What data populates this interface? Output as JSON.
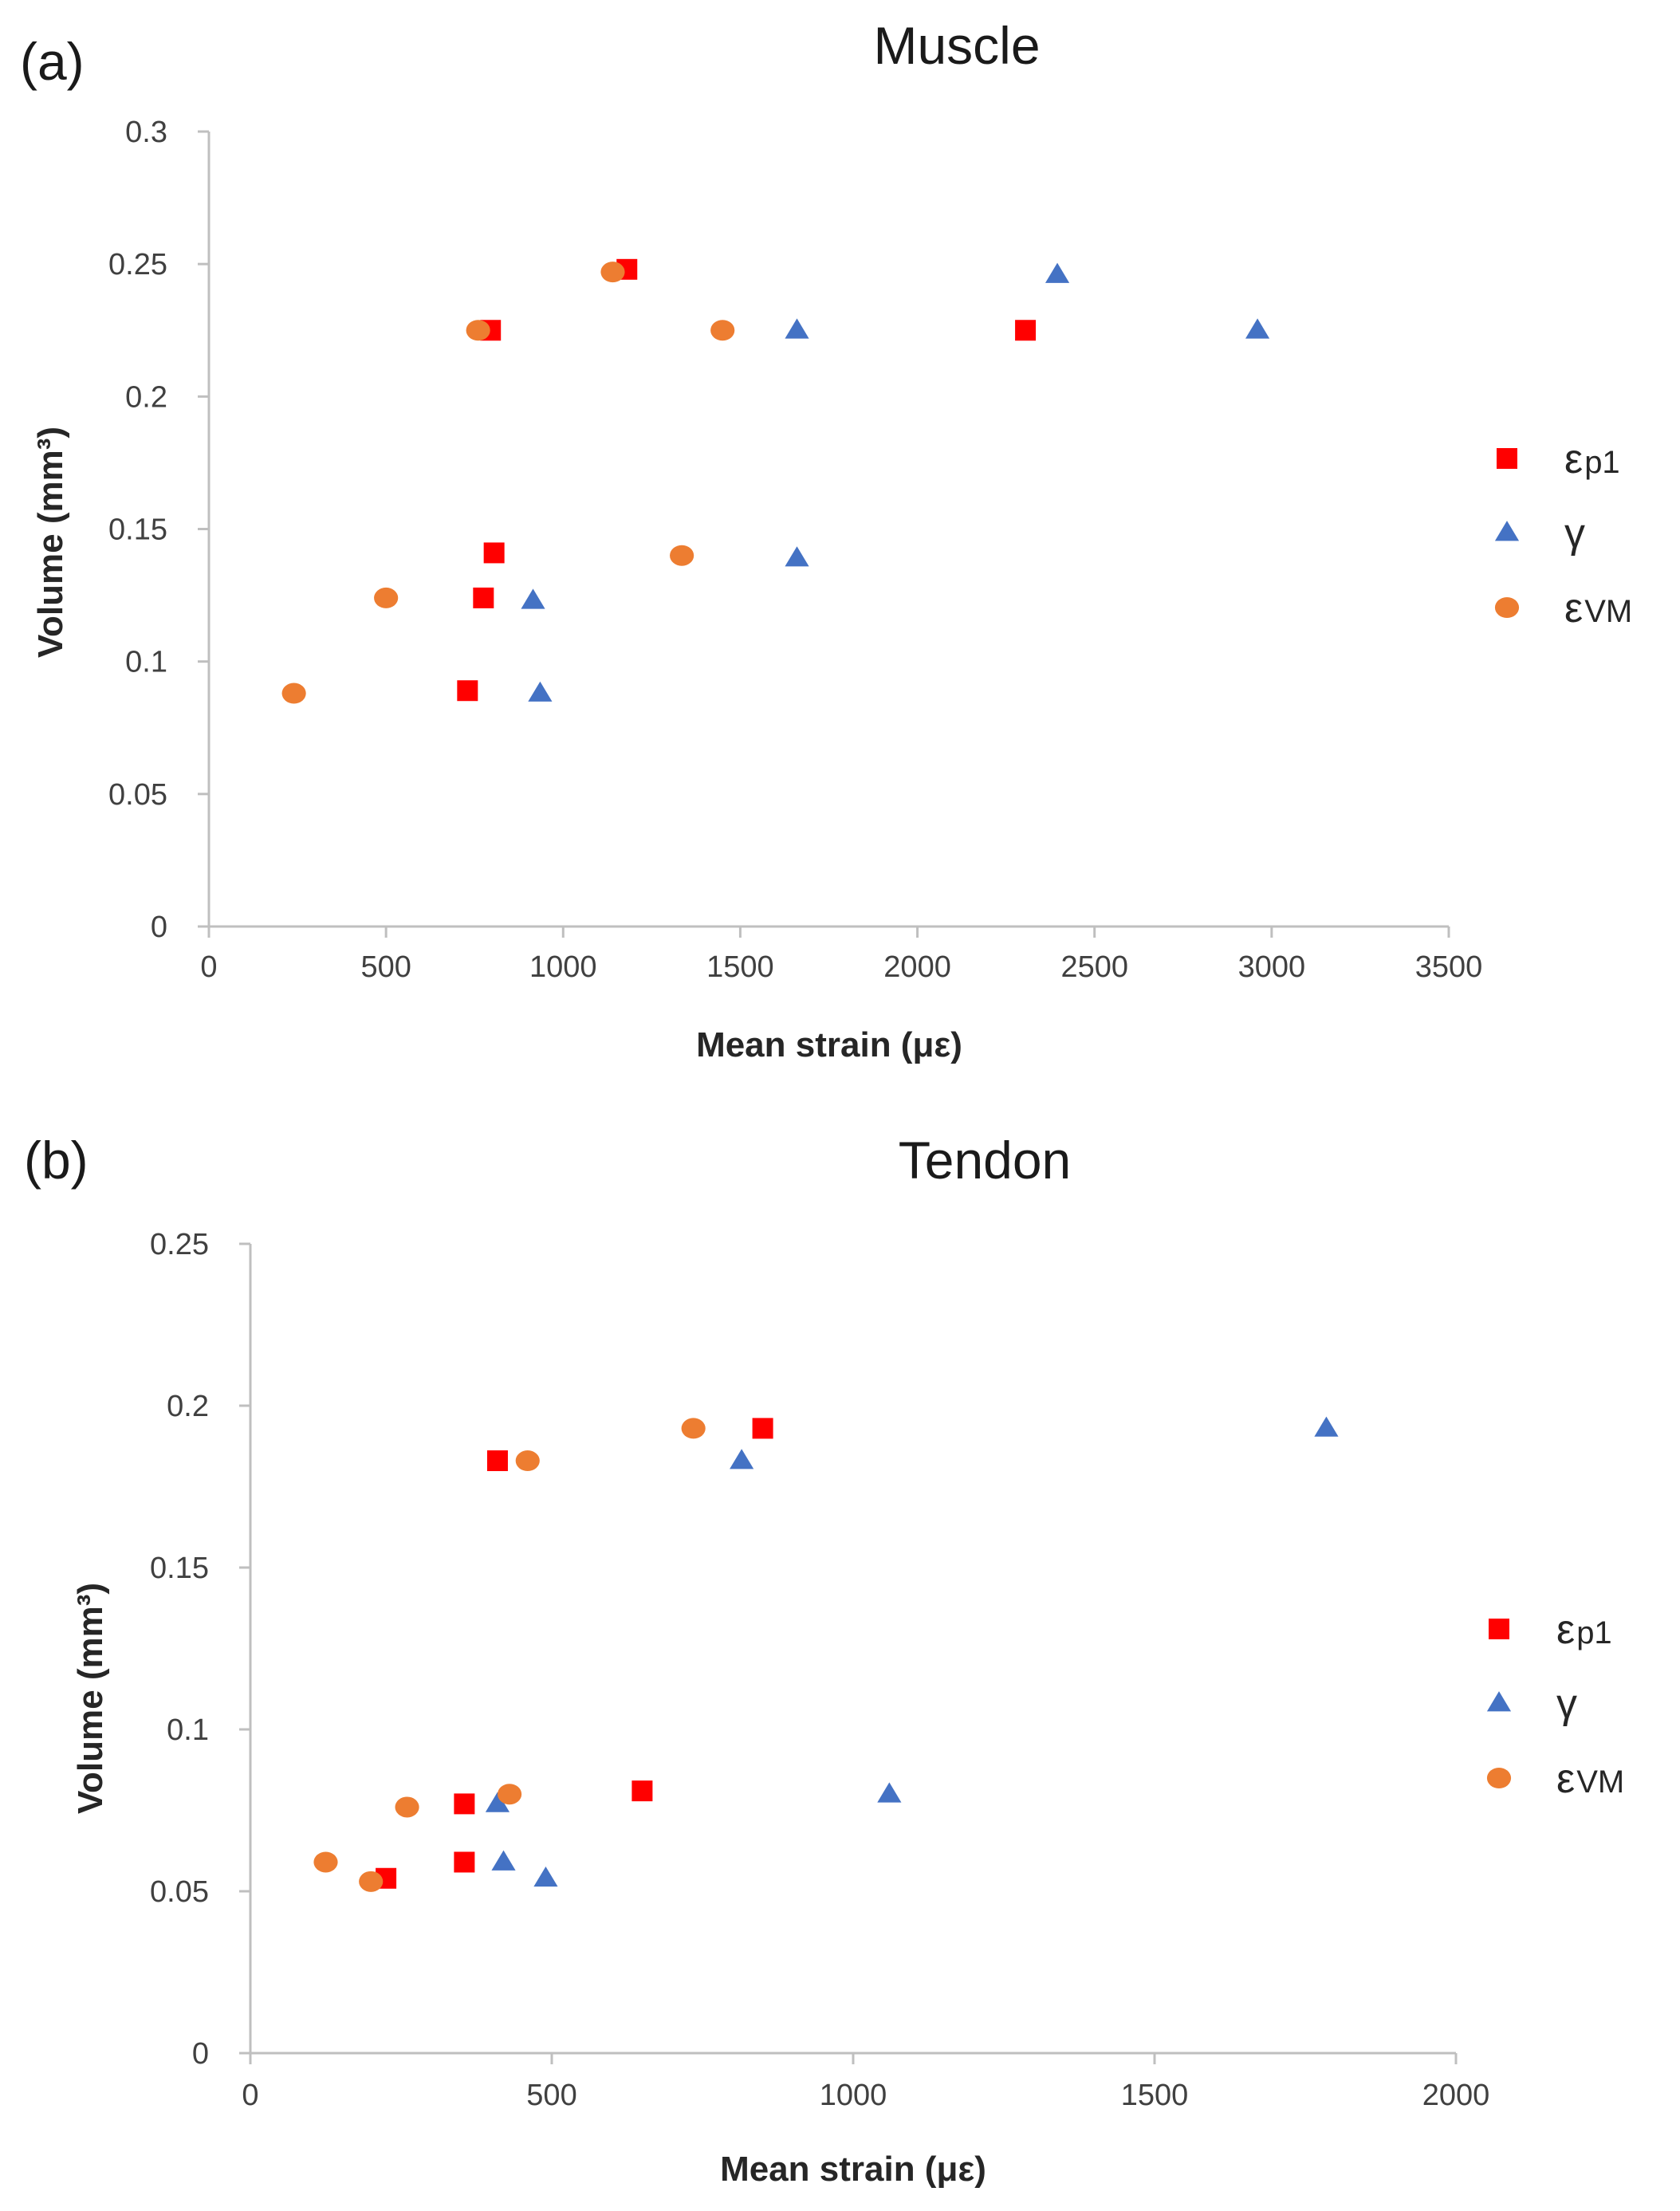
{
  "chart_data": [
    {
      "type": "scatter",
      "panel_label": "(a)",
      "title": "Muscle",
      "xlabel": "Mean strain (με)",
      "ylabel": "Volume (mm³)",
      "xlim": [
        0,
        3500
      ],
      "ylim": [
        0,
        0.3
      ],
      "xticks": [
        "0",
        "500",
        "1000",
        "1500",
        "2000",
        "2500",
        "3000",
        "3500"
      ],
      "yticks": [
        "0",
        "0.05",
        "0.1",
        "0.15",
        "0.2",
        "0.25",
        "0.3"
      ],
      "grid": false,
      "legend_position": "right",
      "series": [
        {
          "name": "εp1",
          "base": "ε",
          "sub": "p1",
          "marker": "square",
          "color": "#FF0000",
          "x": [
            730,
            775,
            795,
            805,
            1180,
            2305
          ],
          "y": [
            0.089,
            0.124,
            0.225,
            0.141,
            0.248,
            0.225
          ]
        },
        {
          "name": "γ",
          "base": "γ",
          "sub": "",
          "marker": "triangle",
          "color": "#4472C4",
          "x": [
            935,
            915,
            1660,
            1660,
            2395,
            2960
          ],
          "y": [
            0.088,
            0.123,
            0.139,
            0.225,
            0.246,
            0.225
          ]
        },
        {
          "name": "εVM",
          "base": "ε",
          "sub": "VM",
          "marker": "circle",
          "color": "#ED7D31",
          "x": [
            240,
            500,
            760,
            1140,
            1335,
            1450
          ],
          "y": [
            0.088,
            0.124,
            0.225,
            0.247,
            0.14,
            0.225
          ]
        }
      ]
    },
    {
      "type": "scatter",
      "panel_label": "(b)",
      "title": "Tendon",
      "xlabel": "Mean strain (με)",
      "ylabel": "Volume (mm³)",
      "xlim": [
        0,
        2000
      ],
      "ylim": [
        0,
        0.25
      ],
      "xticks": [
        "0",
        "500",
        "1000",
        "1500",
        "2000"
      ],
      "yticks": [
        "0",
        "0.05",
        "0.1",
        "0.15",
        "0.2",
        "0.25"
      ],
      "grid": false,
      "legend_position": "right",
      "series": [
        {
          "name": "εp1",
          "base": "ε",
          "sub": "p1",
          "marker": "square",
          "color": "#FF0000",
          "x": [
            225,
            355,
            355,
            410,
            650,
            850
          ],
          "y": [
            0.054,
            0.059,
            0.077,
            0.183,
            0.081,
            0.193
          ]
        },
        {
          "name": "γ",
          "base": "γ",
          "sub": "",
          "marker": "triangle",
          "color": "#4472C4",
          "x": [
            410,
            420,
            490,
            815,
            1060,
            1785
          ],
          "y": [
            0.077,
            0.059,
            0.054,
            0.183,
            0.08,
            0.193
          ]
        },
        {
          "name": "εVM",
          "base": "ε",
          "sub": "VM",
          "marker": "circle",
          "color": "#ED7D31",
          "x": [
            125,
            200,
            260,
            430,
            460,
            735
          ],
          "y": [
            0.059,
            0.053,
            0.076,
            0.08,
            0.183,
            0.193
          ]
        }
      ]
    }
  ]
}
